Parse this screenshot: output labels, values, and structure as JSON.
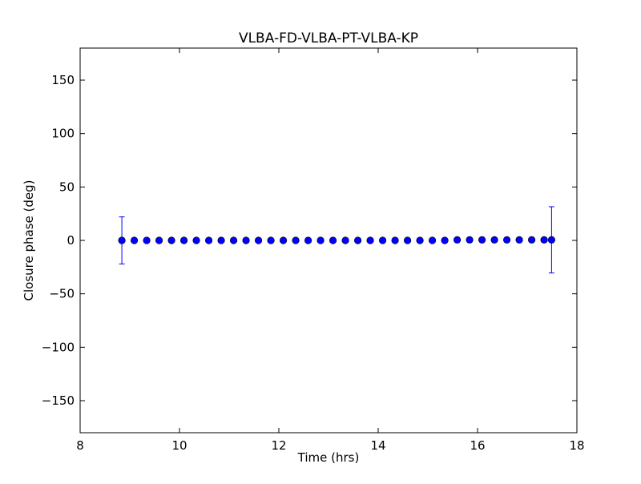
{
  "chart_data": {
    "type": "scatter",
    "title": "VLBA-FD-VLBA-PT-VLBA-KP",
    "xlabel": "Time (hrs)",
    "ylabel": "Closure phase (deg)",
    "xlim": [
      8,
      18
    ],
    "ylim": [
      -180,
      180
    ],
    "xticks": [
      8,
      10,
      12,
      14,
      16,
      18
    ],
    "xtick_labels": [
      "8",
      "10",
      "12",
      "14",
      "16",
      "18"
    ],
    "yticks": [
      -150,
      -100,
      -50,
      0,
      50,
      100,
      150
    ],
    "ytick_labels": [
      "−150",
      "−100",
      "−50",
      "0",
      "50",
      "100",
      "150"
    ],
    "grid": false,
    "marker_color": "#0000ff",
    "errorbar_color": "#0000ff",
    "series": [
      {
        "x": [
          8.84,
          9.09,
          9.34,
          9.59,
          9.84,
          10.09,
          10.34,
          10.59,
          10.84,
          11.09,
          11.34,
          11.59,
          11.84,
          12.09,
          12.34,
          12.59,
          12.84,
          13.09,
          13.34,
          13.59,
          13.84,
          14.09,
          14.34,
          14.59,
          14.84,
          15.09,
          15.34,
          15.59,
          15.84,
          16.09,
          16.34,
          16.59,
          16.84,
          17.09,
          17.34,
          17.49
        ],
        "y": [
          0,
          0,
          0,
          0,
          0,
          0,
          0,
          0,
          0,
          0,
          0,
          0,
          0,
          0,
          0,
          0,
          0,
          0,
          0,
          0,
          0,
          0,
          0,
          0,
          0,
          0,
          0,
          0.5,
          0.5,
          0.5,
          0.5,
          0.5,
          0.5,
          0.5,
          0.5,
          0.5
        ],
        "yerr": [
          22,
          0,
          0,
          0,
          0,
          0,
          0,
          0,
          0,
          0,
          0,
          0,
          0,
          0,
          0,
          0,
          0,
          0,
          0,
          0,
          0,
          0,
          0,
          0,
          0,
          0,
          0,
          0,
          0,
          0,
          0,
          0,
          0,
          0,
          0,
          31
        ]
      }
    ]
  }
}
